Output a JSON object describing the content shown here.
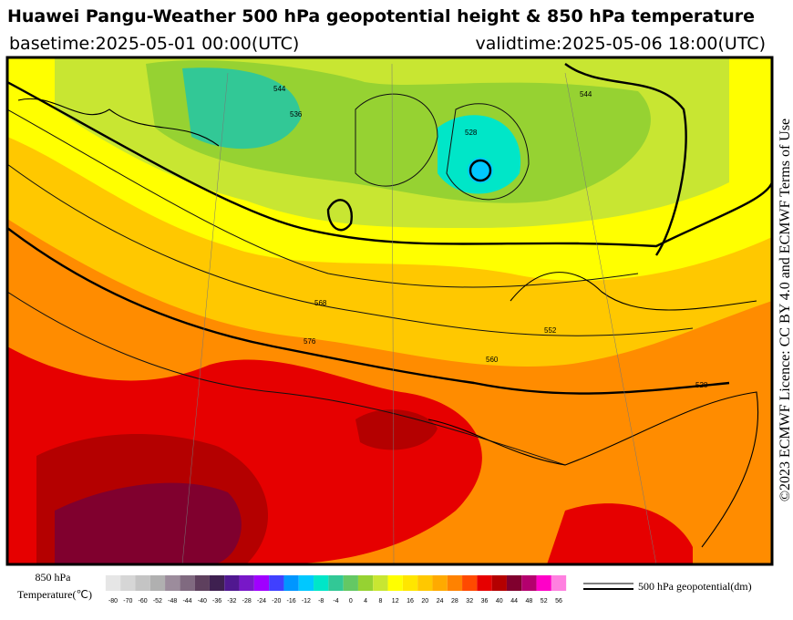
{
  "header": {
    "title": "Huawei Pangu-Weather 500 hPa geopotential height & 850 hPa temperature",
    "basetime": "basetime:2025-05-01 00:00(UTC)",
    "validtime": "validtime:2025-05-06 18:00(UTC)"
  },
  "license": "©2023 ECMWF Licence: CC BY 4.0 and ECMWF Terms of Use",
  "map": {
    "contour_labels": [
      "544",
      "536",
      "528",
      "568",
      "576",
      "552",
      "560",
      "544",
      "528"
    ]
  },
  "legend": {
    "temperature_title": [
      "850 hPa",
      "Temperature(℃)"
    ],
    "contour_label": "500 hPa geopotential(dm)",
    "colorbar": {
      "labels": [
        "-80",
        "-70",
        "-60",
        "-52",
        "-48",
        "-44",
        "-40",
        "-36",
        "-32",
        "-28",
        "-24",
        "-20",
        "-16",
        "-12",
        "-8",
        "-4",
        "0",
        "4",
        "8",
        "12",
        "16",
        "20",
        "24",
        "28",
        "32",
        "36",
        "40",
        "44",
        "48",
        "52",
        "56"
      ],
      "colors": [
        "#e6e6e6",
        "#d6d6d6",
        "#c4c4c4",
        "#b0b0b0",
        "#9c8c9c",
        "#806a80",
        "#5e405e",
        "#3e2050",
        "#501890",
        "#7818c8",
        "#a000ff",
        "#4040ff",
        "#0096ff",
        "#00c8ff",
        "#00e6c8",
        "#32c896",
        "#64c864",
        "#96d232",
        "#c8e632",
        "#ffff00",
        "#ffe600",
        "#ffc800",
        "#ffaa00",
        "#ff8200",
        "#ff4a00",
        "#e60000",
        "#b40000",
        "#80002e",
        "#b4006e",
        "#ff00c8",
        "#ff80e0"
      ]
    }
  }
}
